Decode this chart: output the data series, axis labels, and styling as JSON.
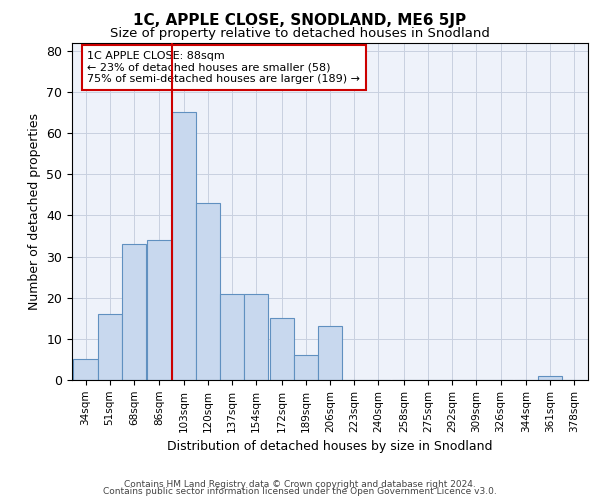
{
  "title": "1C, APPLE CLOSE, SNODLAND, ME6 5JP",
  "subtitle": "Size of property relative to detached houses in Snodland",
  "xlabel": "Distribution of detached houses by size in Snodland",
  "ylabel": "Number of detached properties",
  "bar_labels": [
    "34sqm",
    "51sqm",
    "68sqm",
    "86sqm",
    "103sqm",
    "120sqm",
    "137sqm",
    "154sqm",
    "172sqm",
    "189sqm",
    "206sqm",
    "223sqm",
    "240sqm",
    "258sqm",
    "275sqm",
    "292sqm",
    "309sqm",
    "326sqm",
    "344sqm",
    "361sqm",
    "378sqm"
  ],
  "bar_heights": [
    5,
    16,
    33,
    34,
    65,
    43,
    21,
    21,
    15,
    6,
    13,
    0,
    0,
    0,
    0,
    0,
    0,
    0,
    0,
    1,
    0
  ],
  "bar_color": "#c8d8ee",
  "bar_edge_color": "#6090c0",
  "bar_edge_width": 0.8,
  "property_line_label": "1C APPLE CLOSE: 88sqm",
  "annotation_line1": "← 23% of detached houses are smaller (58)",
  "annotation_line2": "75% of semi-detached houses are larger (189) →",
  "ylim": [
    0,
    82
  ],
  "yticks": [
    0,
    10,
    20,
    30,
    40,
    50,
    60,
    70,
    80
  ],
  "grid_color": "#c8d0e0",
  "plot_bg_color": "#eef2fa",
  "fig_bg_color": "#ffffff",
  "red_line_color": "#cc0000",
  "annotation_box_color": "#ffffff",
  "annotation_box_edge": "#cc0000",
  "footer_line1": "Contains HM Land Registry data © Crown copyright and database right 2024.",
  "footer_line2": "Contains public sector information licensed under the Open Government Licence v3.0.",
  "x_values": [
    34,
    51,
    68,
    86,
    103,
    120,
    137,
    154,
    172,
    189,
    206,
    223,
    240,
    258,
    275,
    292,
    309,
    326,
    344,
    361,
    378
  ],
  "bin_width": 17,
  "red_line_x": 94.5
}
